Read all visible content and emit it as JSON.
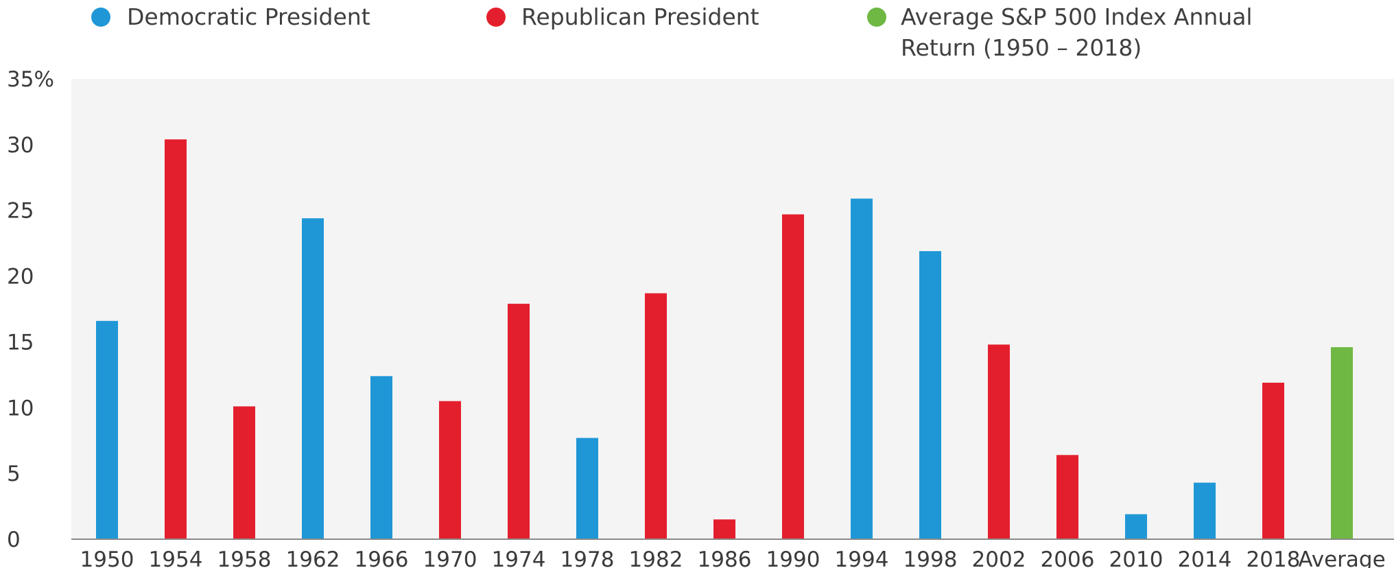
{
  "chart_data": {
    "type": "bar",
    "categories": [
      "1950",
      "1954",
      "1958",
      "1962",
      "1966",
      "1970",
      "1974",
      "1978",
      "1982",
      "1986",
      "1990",
      "1994",
      "1998",
      "2002",
      "2006",
      "2010",
      "2014",
      "2018",
      "Average"
    ],
    "values": [
      16.6,
      30.4,
      10.1,
      24.4,
      12.4,
      10.5,
      17.9,
      7.7,
      18.7,
      1.5,
      24.7,
      25.9,
      21.9,
      14.8,
      6.4,
      1.9,
      4.3,
      11.9,
      14.6
    ],
    "party": [
      "democratic",
      "republican",
      "republican",
      "democratic",
      "democratic",
      "republican",
      "republican",
      "democratic",
      "republican",
      "republican",
      "republican",
      "democratic",
      "democratic",
      "republican",
      "republican",
      "democratic",
      "democratic",
      "republican",
      "average"
    ],
    "ylim": [
      0,
      35
    ],
    "yticks": [
      "0",
      "5",
      "10",
      "15",
      "20",
      "25",
      "30",
      "35%"
    ],
    "ytick_values": [
      0,
      5,
      10,
      15,
      20,
      25,
      30,
      35
    ],
    "grid": false,
    "legend_placement": "top",
    "legend": [
      {
        "key": "democratic",
        "label": "Democratic President",
        "color": "#1f97d6"
      },
      {
        "key": "republican",
        "label": "Republican President",
        "color": "#e41f2d"
      },
      {
        "key": "average",
        "label_lines": [
          "Average S&P 500 Index Annual",
          "Return (1950 – 2018)"
        ],
        "color": "#6fb843"
      }
    ],
    "colors": {
      "democratic": "#1f97d6",
      "republican": "#e41f2d",
      "average": "#6fb843",
      "plot_background": "#f4f4f4",
      "axis": "#8a8a8a"
    }
  }
}
